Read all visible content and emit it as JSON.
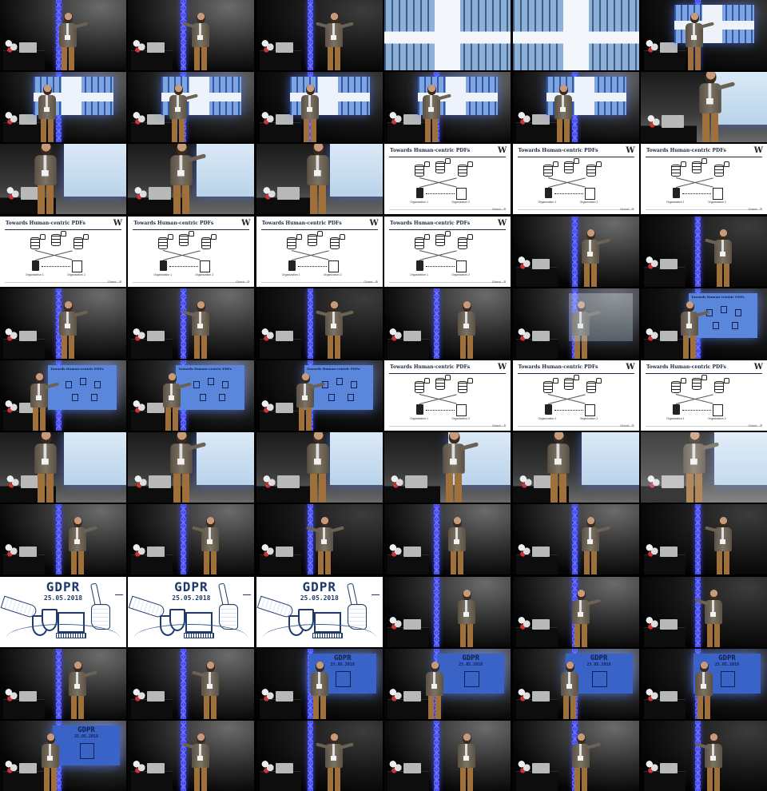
{
  "slide_human_pdfs": {
    "title": "Towards Human-centric PDFs",
    "logo": "W",
    "label_left": "Organization 1",
    "label_right": "Organization 2",
    "brand": "Ghent - ℗"
  },
  "slide_gdpr": {
    "title": "GDPR",
    "date": "25.05.2018"
  },
  "tiles": [
    "stage",
    "stage",
    "stage",
    "arch",
    "arch",
    "stage-proj",
    "stage-proj",
    "stage-proj",
    "stage-proj",
    "stage-proj",
    "stage-proj",
    "close-light",
    "close-light",
    "close-light",
    "close-light",
    "slide",
    "slide",
    "slide",
    "slide",
    "slide",
    "slide",
    "slide",
    "stage",
    "stage",
    "stage",
    "stage",
    "stage",
    "stage",
    "stage-ghost",
    "stage-projslide",
    "stage-projslide",
    "stage-projslide",
    "stage-projslide",
    "slide",
    "slide",
    "slide",
    "close-light",
    "close-light",
    "close-light",
    "close-light",
    "close-light",
    "close-ghost",
    "stage",
    "stage",
    "stage",
    "stage",
    "stage",
    "stage",
    "gdpr",
    "gdpr",
    "gdpr",
    "stage",
    "stage",
    "stage",
    "stage",
    "stage",
    "stage-gdpr",
    "stage-gdpr",
    "stage-gdpr",
    "stage-gdpr",
    "stage-gdpr",
    "stage",
    "stage",
    "stage",
    "stage",
    "stage"
  ]
}
